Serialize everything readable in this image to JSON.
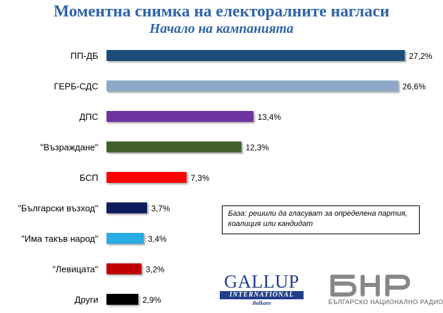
{
  "chart_data": {
    "type": "bar",
    "orientation": "horizontal",
    "title": "Моментна снимка на електоралните нагласи",
    "subtitle": "Начало на кампанията",
    "categories": [
      "ПП-ДБ",
      "ГЕРБ-СДС",
      "ДПС",
      "\"Възраждане\"",
      "БСП",
      "\"Български възход\"",
      "\"Има такъв народ\"",
      "\"Левицата\"",
      "Други"
    ],
    "values": [
      27.2,
      26.6,
      13.4,
      12.3,
      7.3,
      3.7,
      3.4,
      3.2,
      2.9
    ],
    "value_labels": [
      "27,2%",
      "26,6%",
      "13,4%",
      "12,3%",
      "7,3%",
      "3,7%",
      "3,4%",
      "3,2%",
      "2,9%"
    ],
    "colors": [
      "#1f4e79",
      "#8ea9c8",
      "#7030a0",
      "#3f5f2a",
      "#ff0000",
      "#0d1f5c",
      "#29abe2",
      "#c00000",
      "#000000"
    ],
    "xlim": [
      0,
      28.3
    ],
    "grid": false,
    "legend": "none"
  },
  "note": {
    "line1": "База: решили да гласуват за определена партия,",
    "line2": "коалиция или кандидат"
  },
  "logos": {
    "gallup_name": "GALLUP",
    "gallup_international": "INTERNATIONAL",
    "gallup_balkans": "Balkans",
    "bnr_text": "БЪЛГАРСКО НАЦИОНАЛНО РАДИО",
    "gallup_color": "#1f3f8a",
    "bnr_color": "#888888"
  }
}
